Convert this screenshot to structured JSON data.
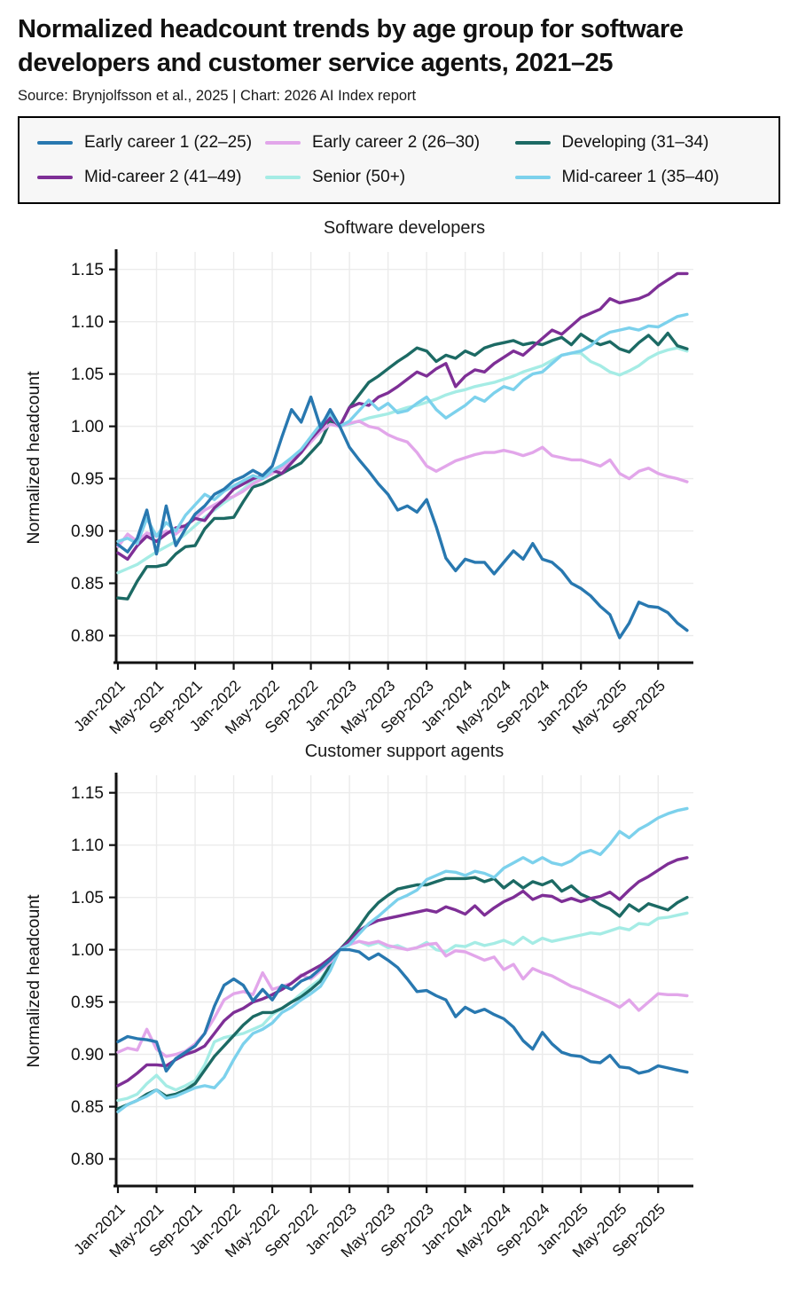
{
  "header": {
    "title": "Normalized headcount trends by age group for software developers and customer service agents, 2021–25",
    "source": "Source: Brynjolfsson et al., 2025 | Chart: 2026 AI Index report"
  },
  "legend": {
    "items": [
      {
        "label": "Early career 1 (22–25)",
        "color": "#2878b0"
      },
      {
        "label": "Early career 2 (26–30)",
        "color": "#e2a6ea"
      },
      {
        "label": "Developing (31–34)",
        "color": "#1c6a64"
      },
      {
        "label": "Mid-career 2 (41–49)",
        "color": "#7e2f96"
      },
      {
        "label": "Senior (50+)",
        "color": "#a5ece5"
      },
      {
        "label": "Mid-career 1 (35–40)",
        "color": "#7cd1ec"
      }
    ]
  },
  "chart_data": [
    {
      "type": "line",
      "title": "Software developers",
      "ylabel": "Normalized headcount",
      "ylim": [
        0.775,
        1.165
      ],
      "yticks": [
        "0.80",
        "0.85",
        "0.90",
        "0.95",
        "1.00",
        "1.05",
        "1.10",
        "1.15"
      ],
      "grid": true,
      "n_months": 60,
      "x_start": "Jan-2021",
      "xtick_labels": [
        "Jan-2021",
        "May-2021",
        "Sep-2021",
        "Jan-2022",
        "May-2022",
        "Sep-2022",
        "Jan-2023",
        "May-2023",
        "Sep-2023",
        "Jan-2024",
        "May-2024",
        "Sep-2024",
        "Jan-2025",
        "May-2025",
        "Sep-2025"
      ],
      "xtick_months": [
        0,
        4,
        8,
        12,
        16,
        20,
        24,
        28,
        32,
        36,
        40,
        44,
        48,
        52,
        56
      ],
      "series": [
        {
          "key": "senior",
          "name": "Senior (50+)",
          "color": "#a5ece5",
          "values": [
            0.86,
            0.864,
            0.868,
            0.874,
            0.88,
            0.885,
            0.89,
            0.897,
            0.905,
            0.913,
            0.92,
            0.927,
            0.933,
            0.94,
            0.948,
            0.952,
            0.957,
            0.962,
            0.97,
            0.977,
            0.988,
            0.998,
            1.008,
            1.0,
            1.002,
            1.005,
            1.008,
            1.01,
            1.012,
            1.015,
            1.018,
            1.02,
            1.023,
            1.026,
            1.03,
            1.033,
            1.035,
            1.038,
            1.04,
            1.042,
            1.045,
            1.048,
            1.052,
            1.055,
            1.058,
            1.063,
            1.068,
            1.07,
            1.07,
            1.062,
            1.058,
            1.052,
            1.049,
            1.053,
            1.058,
            1.065,
            1.07,
            1.073,
            1.075,
            1.072
          ]
        },
        {
          "key": "developing",
          "name": "Developing (31–34)",
          "color": "#1c6a64",
          "values": [
            0.836,
            0.835,
            0.852,
            0.866,
            0.866,
            0.868,
            0.878,
            0.885,
            0.886,
            0.902,
            0.912,
            0.912,
            0.913,
            0.928,
            0.942,
            0.945,
            0.95,
            0.955,
            0.96,
            0.965,
            0.975,
            0.985,
            1.005,
            1.0,
            1.018,
            1.03,
            1.042,
            1.048,
            1.055,
            1.062,
            1.068,
            1.075,
            1.072,
            1.062,
            1.068,
            1.065,
            1.072,
            1.068,
            1.075,
            1.078,
            1.08,
            1.082,
            1.078,
            1.08,
            1.078,
            1.082,
            1.085,
            1.078,
            1.088,
            1.082,
            1.078,
            1.081,
            1.074,
            1.071,
            1.08,
            1.087,
            1.078,
            1.089,
            1.077,
            1.074
          ]
        },
        {
          "key": "early-career-2",
          "name": "Early career 2 (26–30)",
          "color": "#e2a6ea",
          "values": [
            0.885,
            0.897,
            0.89,
            0.898,
            0.895,
            0.9,
            0.897,
            0.905,
            0.912,
            0.92,
            0.925,
            0.93,
            0.933,
            0.938,
            0.945,
            0.95,
            0.955,
            0.96,
            0.968,
            0.975,
            0.985,
            0.995,
            1.002,
            1.0,
            1.003,
            1.005,
            1.0,
            0.998,
            0.992,
            0.988,
            0.985,
            0.975,
            0.962,
            0.957,
            0.962,
            0.967,
            0.97,
            0.973,
            0.975,
            0.975,
            0.977,
            0.975,
            0.972,
            0.975,
            0.98,
            0.972,
            0.97,
            0.968,
            0.968,
            0.965,
            0.962,
            0.968,
            0.955,
            0.95,
            0.957,
            0.96,
            0.955,
            0.952,
            0.95,
            0.947
          ]
        },
        {
          "key": "mid-career-2",
          "name": "Mid-career 2 (41–49)",
          "color": "#7e2f96",
          "values": [
            0.879,
            0.873,
            0.886,
            0.895,
            0.89,
            0.897,
            0.903,
            0.905,
            0.912,
            0.91,
            0.922,
            0.93,
            0.94,
            0.945,
            0.95,
            0.953,
            0.958,
            0.955,
            0.965,
            0.975,
            0.988,
            0.998,
            1.008,
            1.0,
            1.018,
            1.022,
            1.02,
            1.028,
            1.032,
            1.038,
            1.045,
            1.052,
            1.048,
            1.055,
            1.06,
            1.038,
            1.048,
            1.054,
            1.052,
            1.06,
            1.066,
            1.072,
            1.068,
            1.076,
            1.084,
            1.092,
            1.088,
            1.096,
            1.104,
            1.108,
            1.112,
            1.122,
            1.118,
            1.12,
            1.122,
            1.126,
            1.134,
            1.14,
            1.146,
            1.146
          ]
        },
        {
          "key": "mid-career-1",
          "name": "Mid-career 1 (35–40)",
          "color": "#7cd1ec",
          "values": [
            0.89,
            0.893,
            0.888,
            0.912,
            0.895,
            0.908,
            0.9,
            0.915,
            0.925,
            0.935,
            0.93,
            0.938,
            0.943,
            0.948,
            0.953,
            0.95,
            0.958,
            0.963,
            0.97,
            0.978,
            0.99,
            1.002,
            1.012,
            1.0,
            1.005,
            1.015,
            1.025,
            1.016,
            1.022,
            1.013,
            1.015,
            1.022,
            1.028,
            1.016,
            1.008,
            1.014,
            1.02,
            1.028,
            1.024,
            1.032,
            1.038,
            1.035,
            1.044,
            1.05,
            1.052,
            1.06,
            1.068,
            1.07,
            1.072,
            1.077,
            1.085,
            1.09,
            1.092,
            1.094,
            1.092,
            1.096,
            1.095,
            1.1,
            1.105,
            1.107
          ]
        },
        {
          "key": "early-career-1",
          "name": "Early career 1 (22–25)",
          "color": "#2878b0",
          "values": [
            0.887,
            0.88,
            0.893,
            0.92,
            0.878,
            0.924,
            0.886,
            0.902,
            0.916,
            0.924,
            0.935,
            0.94,
            0.948,
            0.952,
            0.958,
            0.953,
            0.962,
            0.99,
            1.016,
            1.004,
            1.028,
            0.999,
            1.016,
            1.0,
            0.98,
            0.968,
            0.957,
            0.945,
            0.935,
            0.92,
            0.924,
            0.918,
            0.93,
            0.904,
            0.874,
            0.862,
            0.873,
            0.87,
            0.87,
            0.859,
            0.87,
            0.881,
            0.873,
            0.888,
            0.873,
            0.87,
            0.862,
            0.85,
            0.845,
            0.838,
            0.828,
            0.82,
            0.798,
            0.812,
            0.832,
            0.828,
            0.827,
            0.822,
            0.812,
            0.805
          ]
        }
      ]
    },
    {
      "type": "line",
      "title": "Customer support agents",
      "ylabel": "Normalized headcount",
      "ylim": [
        0.775,
        1.165
      ],
      "yticks": [
        "0.80",
        "0.85",
        "0.90",
        "0.95",
        "1.00",
        "1.05",
        "1.10",
        "1.15"
      ],
      "grid": true,
      "n_months": 60,
      "x_start": "Jan-2021",
      "xtick_labels": [
        "Jan-2021",
        "May-2021",
        "Sep-2021",
        "Jan-2022",
        "May-2022",
        "Sep-2022",
        "Jan-2023",
        "May-2023",
        "Sep-2023",
        "Jan-2024",
        "May-2024",
        "Sep-2024",
        "Jan-2025",
        "May-2025",
        "Sep-2025"
      ],
      "xtick_months": [
        0,
        4,
        8,
        12,
        16,
        20,
        24,
        28,
        32,
        36,
        40,
        44,
        48,
        52,
        56
      ],
      "series": [
        {
          "key": "senior",
          "name": "Senior (50+)",
          "color": "#a5ece5",
          "values": [
            0.856,
            0.858,
            0.862,
            0.872,
            0.88,
            0.87,
            0.866,
            0.87,
            0.875,
            0.89,
            0.912,
            0.916,
            0.918,
            0.92,
            0.924,
            0.928,
            0.938,
            0.944,
            0.95,
            0.958,
            0.965,
            0.972,
            0.985,
            1.0,
            1.005,
            1.008,
            1.004,
            1.007,
            1.002,
            1.004,
            1.0,
            1.002,
            1.007,
            1.0,
            0.998,
            1.004,
            1.003,
            1.007,
            1.004,
            1.006,
            1.009,
            1.005,
            1.012,
            1.006,
            1.011,
            1.008,
            1.01,
            1.012,
            1.014,
            1.016,
            1.015,
            1.018,
            1.021,
            1.019,
            1.025,
            1.024,
            1.03,
            1.031,
            1.033,
            1.035
          ]
        },
        {
          "key": "developing",
          "name": "Developing (31–34)",
          "color": "#1c6a64",
          "values": [
            0.848,
            0.852,
            0.856,
            0.862,
            0.866,
            0.86,
            0.862,
            0.866,
            0.872,
            0.885,
            0.898,
            0.908,
            0.918,
            0.928,
            0.936,
            0.94,
            0.94,
            0.944,
            0.95,
            0.955,
            0.962,
            0.97,
            0.985,
            1.0,
            1.01,
            1.022,
            1.035,
            1.045,
            1.052,
            1.058,
            1.06,
            1.062,
            1.062,
            1.065,
            1.068,
            1.068,
            1.068,
            1.069,
            1.065,
            1.068,
            1.059,
            1.066,
            1.059,
            1.065,
            1.062,
            1.066,
            1.056,
            1.061,
            1.053,
            1.049,
            1.043,
            1.039,
            1.032,
            1.043,
            1.037,
            1.044,
            1.041,
            1.038,
            1.045,
            1.05
          ]
        },
        {
          "key": "early-career-2",
          "name": "Early career 2 (26–30)",
          "color": "#e2a6ea",
          "values": [
            0.902,
            0.906,
            0.904,
            0.924,
            0.905,
            0.898,
            0.9,
            0.903,
            0.91,
            0.92,
            0.935,
            0.952,
            0.958,
            0.96,
            0.957,
            0.978,
            0.962,
            0.965,
            0.968,
            0.976,
            0.972,
            0.98,
            0.988,
            1.0,
            1.005,
            1.008,
            1.006,
            1.008,
            1.004,
            1.002,
            1.0,
            1.002,
            1.005,
            1.006,
            0.994,
            0.999,
            0.998,
            0.994,
            0.99,
            0.993,
            0.981,
            0.986,
            0.972,
            0.982,
            0.978,
            0.975,
            0.97,
            0.965,
            0.962,
            0.958,
            0.954,
            0.95,
            0.945,
            0.952,
            0.942,
            0.95,
            0.958,
            0.957,
            0.957,
            0.956
          ]
        },
        {
          "key": "mid-career-2",
          "name": "Mid-career 2 (41–49)",
          "color": "#7e2f96",
          "values": [
            0.87,
            0.875,
            0.882,
            0.89,
            0.89,
            0.889,
            0.895,
            0.9,
            0.903,
            0.908,
            0.92,
            0.932,
            0.94,
            0.944,
            0.95,
            0.953,
            0.957,
            0.962,
            0.968,
            0.975,
            0.98,
            0.985,
            0.992,
            1.0,
            1.008,
            1.018,
            1.024,
            1.028,
            1.03,
            1.032,
            1.034,
            1.036,
            1.038,
            1.036,
            1.041,
            1.038,
            1.034,
            1.042,
            1.033,
            1.04,
            1.046,
            1.05,
            1.056,
            1.048,
            1.052,
            1.051,
            1.046,
            1.049,
            1.046,
            1.049,
            1.051,
            1.055,
            1.048,
            1.057,
            1.065,
            1.07,
            1.076,
            1.082,
            1.086,
            1.088
          ]
        },
        {
          "key": "mid-career-1",
          "name": "Mid-career 1 (35–40)",
          "color": "#7cd1ec",
          "values": [
            0.845,
            0.852,
            0.856,
            0.86,
            0.866,
            0.858,
            0.86,
            0.864,
            0.868,
            0.87,
            0.868,
            0.878,
            0.895,
            0.91,
            0.92,
            0.924,
            0.93,
            0.94,
            0.945,
            0.952,
            0.958,
            0.965,
            0.98,
            1.0,
            1.005,
            1.015,
            1.025,
            1.032,
            1.04,
            1.048,
            1.052,
            1.057,
            1.067,
            1.071,
            1.075,
            1.074,
            1.071,
            1.075,
            1.073,
            1.069,
            1.078,
            1.083,
            1.088,
            1.083,
            1.088,
            1.083,
            1.081,
            1.085,
            1.092,
            1.095,
            1.091,
            1.101,
            1.113,
            1.107,
            1.115,
            1.12,
            1.126,
            1.13,
            1.133,
            1.135
          ]
        },
        {
          "key": "early-career-1",
          "name": "Early career 1 (22–25)",
          "color": "#2878b0",
          "values": [
            0.912,
            0.917,
            0.915,
            0.914,
            0.912,
            0.884,
            0.896,
            0.902,
            0.908,
            0.92,
            0.946,
            0.966,
            0.972,
            0.966,
            0.951,
            0.962,
            0.952,
            0.966,
            0.962,
            0.97,
            0.974,
            0.982,
            0.99,
            1.0,
            1.0,
            0.998,
            0.991,
            0.996,
            0.99,
            0.983,
            0.972,
            0.96,
            0.961,
            0.956,
            0.952,
            0.936,
            0.945,
            0.94,
            0.943,
            0.938,
            0.934,
            0.926,
            0.913,
            0.905,
            0.921,
            0.91,
            0.902,
            0.899,
            0.898,
            0.893,
            0.892,
            0.899,
            0.888,
            0.887,
            0.882,
            0.884,
            0.889,
            0.887,
            0.885,
            0.883
          ]
        }
      ]
    }
  ]
}
